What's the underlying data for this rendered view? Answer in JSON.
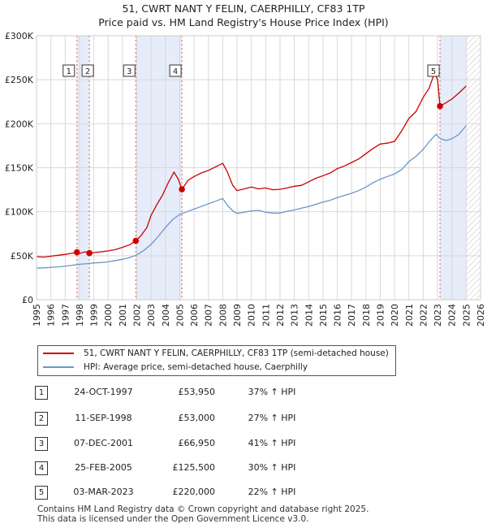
{
  "title_line1": "51, CWRT NANT Y FELIN, CAERPHILLY, CF83 1TP",
  "title_line2": "Price paid vs. HM Land Registry's House Price Index (HPI)",
  "chart_data": {
    "type": "line",
    "title": "51, CWRT NANT Y FELIN, CAERPHILLY, CF83 1TP — Price paid vs. HM Land Registry's House Price Index (HPI)",
    "xlim": [
      1995,
      2026
    ],
    "ylim": [
      0,
      300000
    ],
    "x_ticks": [
      1995,
      1996,
      1997,
      1998,
      1999,
      2000,
      2001,
      2002,
      2003,
      2004,
      2005,
      2006,
      2007,
      2008,
      2009,
      2010,
      2011,
      2012,
      2013,
      2014,
      2015,
      2016,
      2017,
      2018,
      2019,
      2020,
      2021,
      2022,
      2023,
      2024,
      2025,
      2026
    ],
    "y_ticks": [
      0,
      50000,
      100000,
      150000,
      200000,
      250000,
      300000
    ],
    "y_tick_labels": [
      "£0",
      "£50K",
      "£100K",
      "£150K",
      "£200K",
      "£250K",
      "£300K"
    ],
    "forecast_start": 2025.0,
    "series": [
      {
        "name": "51, CWRT NANT Y FELIN, CAERPHILLY, CF83 1TP (semi-detached house)",
        "color": "#cc0000",
        "x": [
          1995.0,
          1995.5,
          1996.0,
          1996.5,
          1997.0,
          1997.5,
          1997.82,
          1998.0,
          1998.4,
          1998.69,
          1999.0,
          1999.5,
          2000.0,
          2000.5,
          2001.0,
          2001.5,
          2001.93,
          2002.3,
          2002.7,
          2003.0,
          2003.4,
          2003.8,
          2004.2,
          2004.6,
          2004.9,
          2005.15,
          2005.6,
          2006.0,
          2006.5,
          2007.0,
          2007.5,
          2008.0,
          2008.3,
          2008.7,
          2009.0,
          2009.5,
          2010.0,
          2010.5,
          2011.0,
          2011.5,
          2012.0,
          2012.5,
          2013.0,
          2013.5,
          2014.0,
          2014.5,
          2015.0,
          2015.5,
          2016.0,
          2016.5,
          2017.0,
          2017.5,
          2018.0,
          2018.5,
          2019.0,
          2019.5,
          2020.0,
          2020.5,
          2021.0,
          2021.5,
          2022.0,
          2022.4,
          2022.8,
          2023.0,
          2023.17,
          2023.5,
          2024.0,
          2024.5,
          2025.0
        ],
        "values": [
          49000,
          48500,
          49500,
          50500,
          51500,
          53000,
          53950,
          52500,
          54500,
          53000,
          53500,
          54500,
          55500,
          57000,
          59500,
          62500,
          66950,
          73000,
          82000,
          96000,
          108000,
          119000,
          133000,
          145000,
          137000,
          125500,
          136000,
          140000,
          144000,
          147000,
          151000,
          155000,
          146000,
          130000,
          124000,
          126000,
          128000,
          126000,
          127000,
          125000,
          125500,
          127000,
          129000,
          130000,
          134000,
          138000,
          141000,
          144000,
          149000,
          152000,
          156000,
          160000,
          166000,
          172000,
          177000,
          178000,
          180000,
          192000,
          206000,
          214000,
          230000,
          240000,
          258000,
          250000,
          220000,
          223000,
          228000,
          235000,
          243000
        ]
      },
      {
        "name": "HPI: Average price, semi-detached house, Caerphilly",
        "color": "#6a96c8",
        "x": [
          1995.0,
          1995.5,
          1996.0,
          1996.5,
          1997.0,
          1997.5,
          1998.0,
          1998.5,
          1999.0,
          1999.5,
          2000.0,
          2000.5,
          2001.0,
          2001.5,
          2002.0,
          2002.5,
          2003.0,
          2003.5,
          2004.0,
          2004.5,
          2005.0,
          2005.5,
          2006.0,
          2006.5,
          2007.0,
          2007.5,
          2008.0,
          2008.3,
          2008.7,
          2009.0,
          2009.5,
          2010.0,
          2010.5,
          2011.0,
          2011.5,
          2012.0,
          2012.5,
          2013.0,
          2013.5,
          2014.0,
          2014.5,
          2015.0,
          2015.5,
          2016.0,
          2016.5,
          2017.0,
          2017.5,
          2018.0,
          2018.5,
          2019.0,
          2019.5,
          2020.0,
          2020.5,
          2021.0,
          2021.5,
          2022.0,
          2022.5,
          2022.9,
          2023.2,
          2023.6,
          2024.0,
          2024.5,
          2025.0
        ],
        "values": [
          36000,
          36200,
          36800,
          37400,
          38200,
          39200,
          40200,
          41000,
          41800,
          42300,
          43000,
          44500,
          46000,
          48000,
          51000,
          56000,
          63000,
          72000,
          82000,
          91000,
          97000,
          100000,
          103000,
          106000,
          109000,
          112000,
          115000,
          108000,
          101000,
          98000,
          99500,
          101000,
          101500,
          99500,
          98500,
          98500,
          100500,
          102000,
          104000,
          106000,
          108500,
          111000,
          113000,
          116000,
          118500,
          121000,
          124000,
          128000,
          133000,
          137000,
          140000,
          143000,
          148000,
          157000,
          163000,
          171000,
          181000,
          188000,
          183000,
          181000,
          183000,
          188000,
          198000
        ]
      }
    ],
    "transactions": [
      {
        "label": "1",
        "x": 1997.82,
        "value": 53950
      },
      {
        "label": "2",
        "x": 1998.69,
        "value": 53000
      },
      {
        "label": "3",
        "x": 2001.93,
        "value": 66950
      },
      {
        "label": "4",
        "x": 2005.15,
        "value": 125500
      },
      {
        "label": "5",
        "x": 2023.17,
        "value": 220000
      }
    ],
    "shaded_spans": [
      [
        1997.82,
        1998.69
      ],
      [
        2001.93,
        2005.15
      ],
      [
        2023.17,
        2025.0
      ]
    ]
  },
  "legend": {
    "property_label": "51, CWRT NANT Y FELIN, CAERPHILLY, CF83 1TP (semi-detached house)",
    "hpi_label": "HPI: Average price, semi-detached house, Caerphilly"
  },
  "sales": [
    {
      "num": "1",
      "date": "24-OCT-1997",
      "price": "£53,950",
      "hpi": "37% ↑ HPI"
    },
    {
      "num": "2",
      "date": "11-SEP-1998",
      "price": "£53,000",
      "hpi": "27% ↑ HPI"
    },
    {
      "num": "3",
      "date": "07-DEC-2001",
      "price": "£66,950",
      "hpi": "41% ↑ HPI"
    },
    {
      "num": "4",
      "date": "25-FEB-2005",
      "price": "£125,500",
      "hpi": "30% ↑ HPI"
    },
    {
      "num": "5",
      "date": "03-MAR-2023",
      "price": "£220,000",
      "hpi": "22% ↑ HPI"
    }
  ],
  "footer_line1": "Contains HM Land Registry data © Crown copyright and database right 2025.",
  "footer_line2": "This data is licensed under the Open Government Licence v3.0."
}
